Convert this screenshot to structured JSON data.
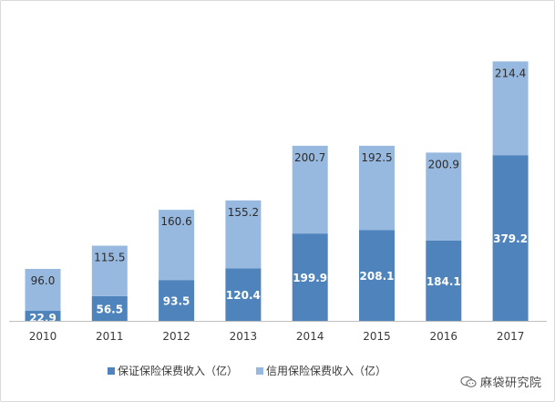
{
  "chart_data": {
    "type": "bar",
    "stacked": true,
    "categories": [
      "2010",
      "2011",
      "2012",
      "2013",
      "2014",
      "2015",
      "2016",
      "2017"
    ],
    "series": [
      {
        "name": "保证保险保费收入（亿）",
        "values": [
          22.9,
          56.5,
          93.5,
          120.4,
          199.9,
          208.1,
          184.1,
          379.2
        ],
        "color": "#4e84bb"
      },
      {
        "name": "信用保险保费收入（亿）",
        "values": [
          96.0,
          115.5,
          160.6,
          155.2,
          200.7,
          192.5,
          200.9,
          214.4
        ],
        "color": "#98b9df"
      }
    ],
    "data_labels": {
      "bottom": [
        "22.9",
        "56.5",
        "93.5",
        "120.4",
        "199.9",
        "208.1",
        "184.1",
        "379.2"
      ],
      "top": [
        "96.0",
        "115.5",
        "160.6",
        "155.2",
        "200.7",
        "192.5",
        "200.9",
        "214.4"
      ]
    },
    "ylim": [
      0,
      630
    ],
    "grid": false,
    "legend_position": "bottom"
  },
  "watermark": {
    "text": "麻袋研究院",
    "icon": "chat-bubbles-icon"
  }
}
